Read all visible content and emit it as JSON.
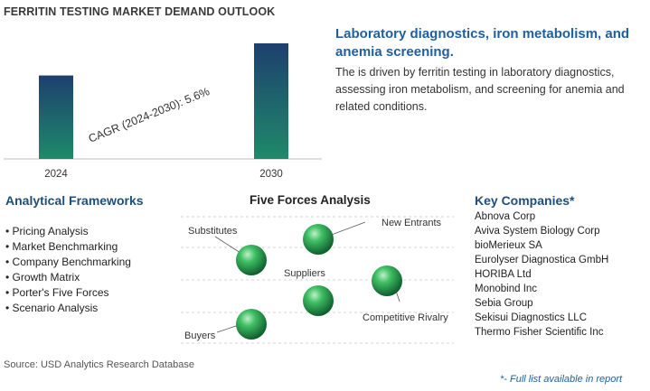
{
  "title": "FERRITIN TESTING MARKET DEMAND OUTLOOK",
  "chart_data": {
    "type": "bar",
    "categories": [
      "2024",
      "2030"
    ],
    "values": [
      1.0,
      1.385
    ],
    "title": "FERRITIN TESTING MARKET DEMAND OUTLOOK",
    "xlabel": "",
    "ylabel": "",
    "annotation": "CAGR (2024-2030):   5.6%",
    "grid": false,
    "bar_color": "#1e6a5a"
  },
  "side": {
    "heading": "Laboratory diagnostics, iron metabolism, and anemia screening.",
    "body": "The is driven by ferritin testing in laboratory diagnostics, assessing iron metabolism, and screening for anemia and related conditions."
  },
  "frameworks": {
    "heading": "Analytical Frameworks",
    "items": [
      "Pricing Analysis",
      "Market Benchmarking",
      "Company Benchmarking",
      "Growth Matrix",
      "Porter's Five Forces",
      "Scenario Analysis"
    ]
  },
  "forces": {
    "heading": "Five Forces Analysis",
    "labels": {
      "substitutes": "Substitutes",
      "new_entrants": "New Entrants",
      "suppliers": "Suppliers",
      "competitive_rivalry": "Competitive Rivalry",
      "buyers": "Buyers"
    }
  },
  "companies": {
    "heading": "Key Companies*",
    "items": [
      "Abnova Corp",
      "Aviva System Biology Corp",
      "bioMerieux SA",
      "Eurolyser Diagnostica GmbH",
      "HORIBA Ltd",
      "Monobind Inc",
      "Sebia Group",
      "Sekisui Diagnostics LLC",
      "Thermo Fisher Scientific Inc"
    ]
  },
  "source": "Source: USD Analytics Research Database",
  "footnote": "*- Full list available in report",
  "colors": {
    "accent": "#1f5f9e",
    "sphere": "#2e9a4e",
    "bar_top": "#1e3f6e",
    "bar_bottom": "#1f8a6a"
  }
}
